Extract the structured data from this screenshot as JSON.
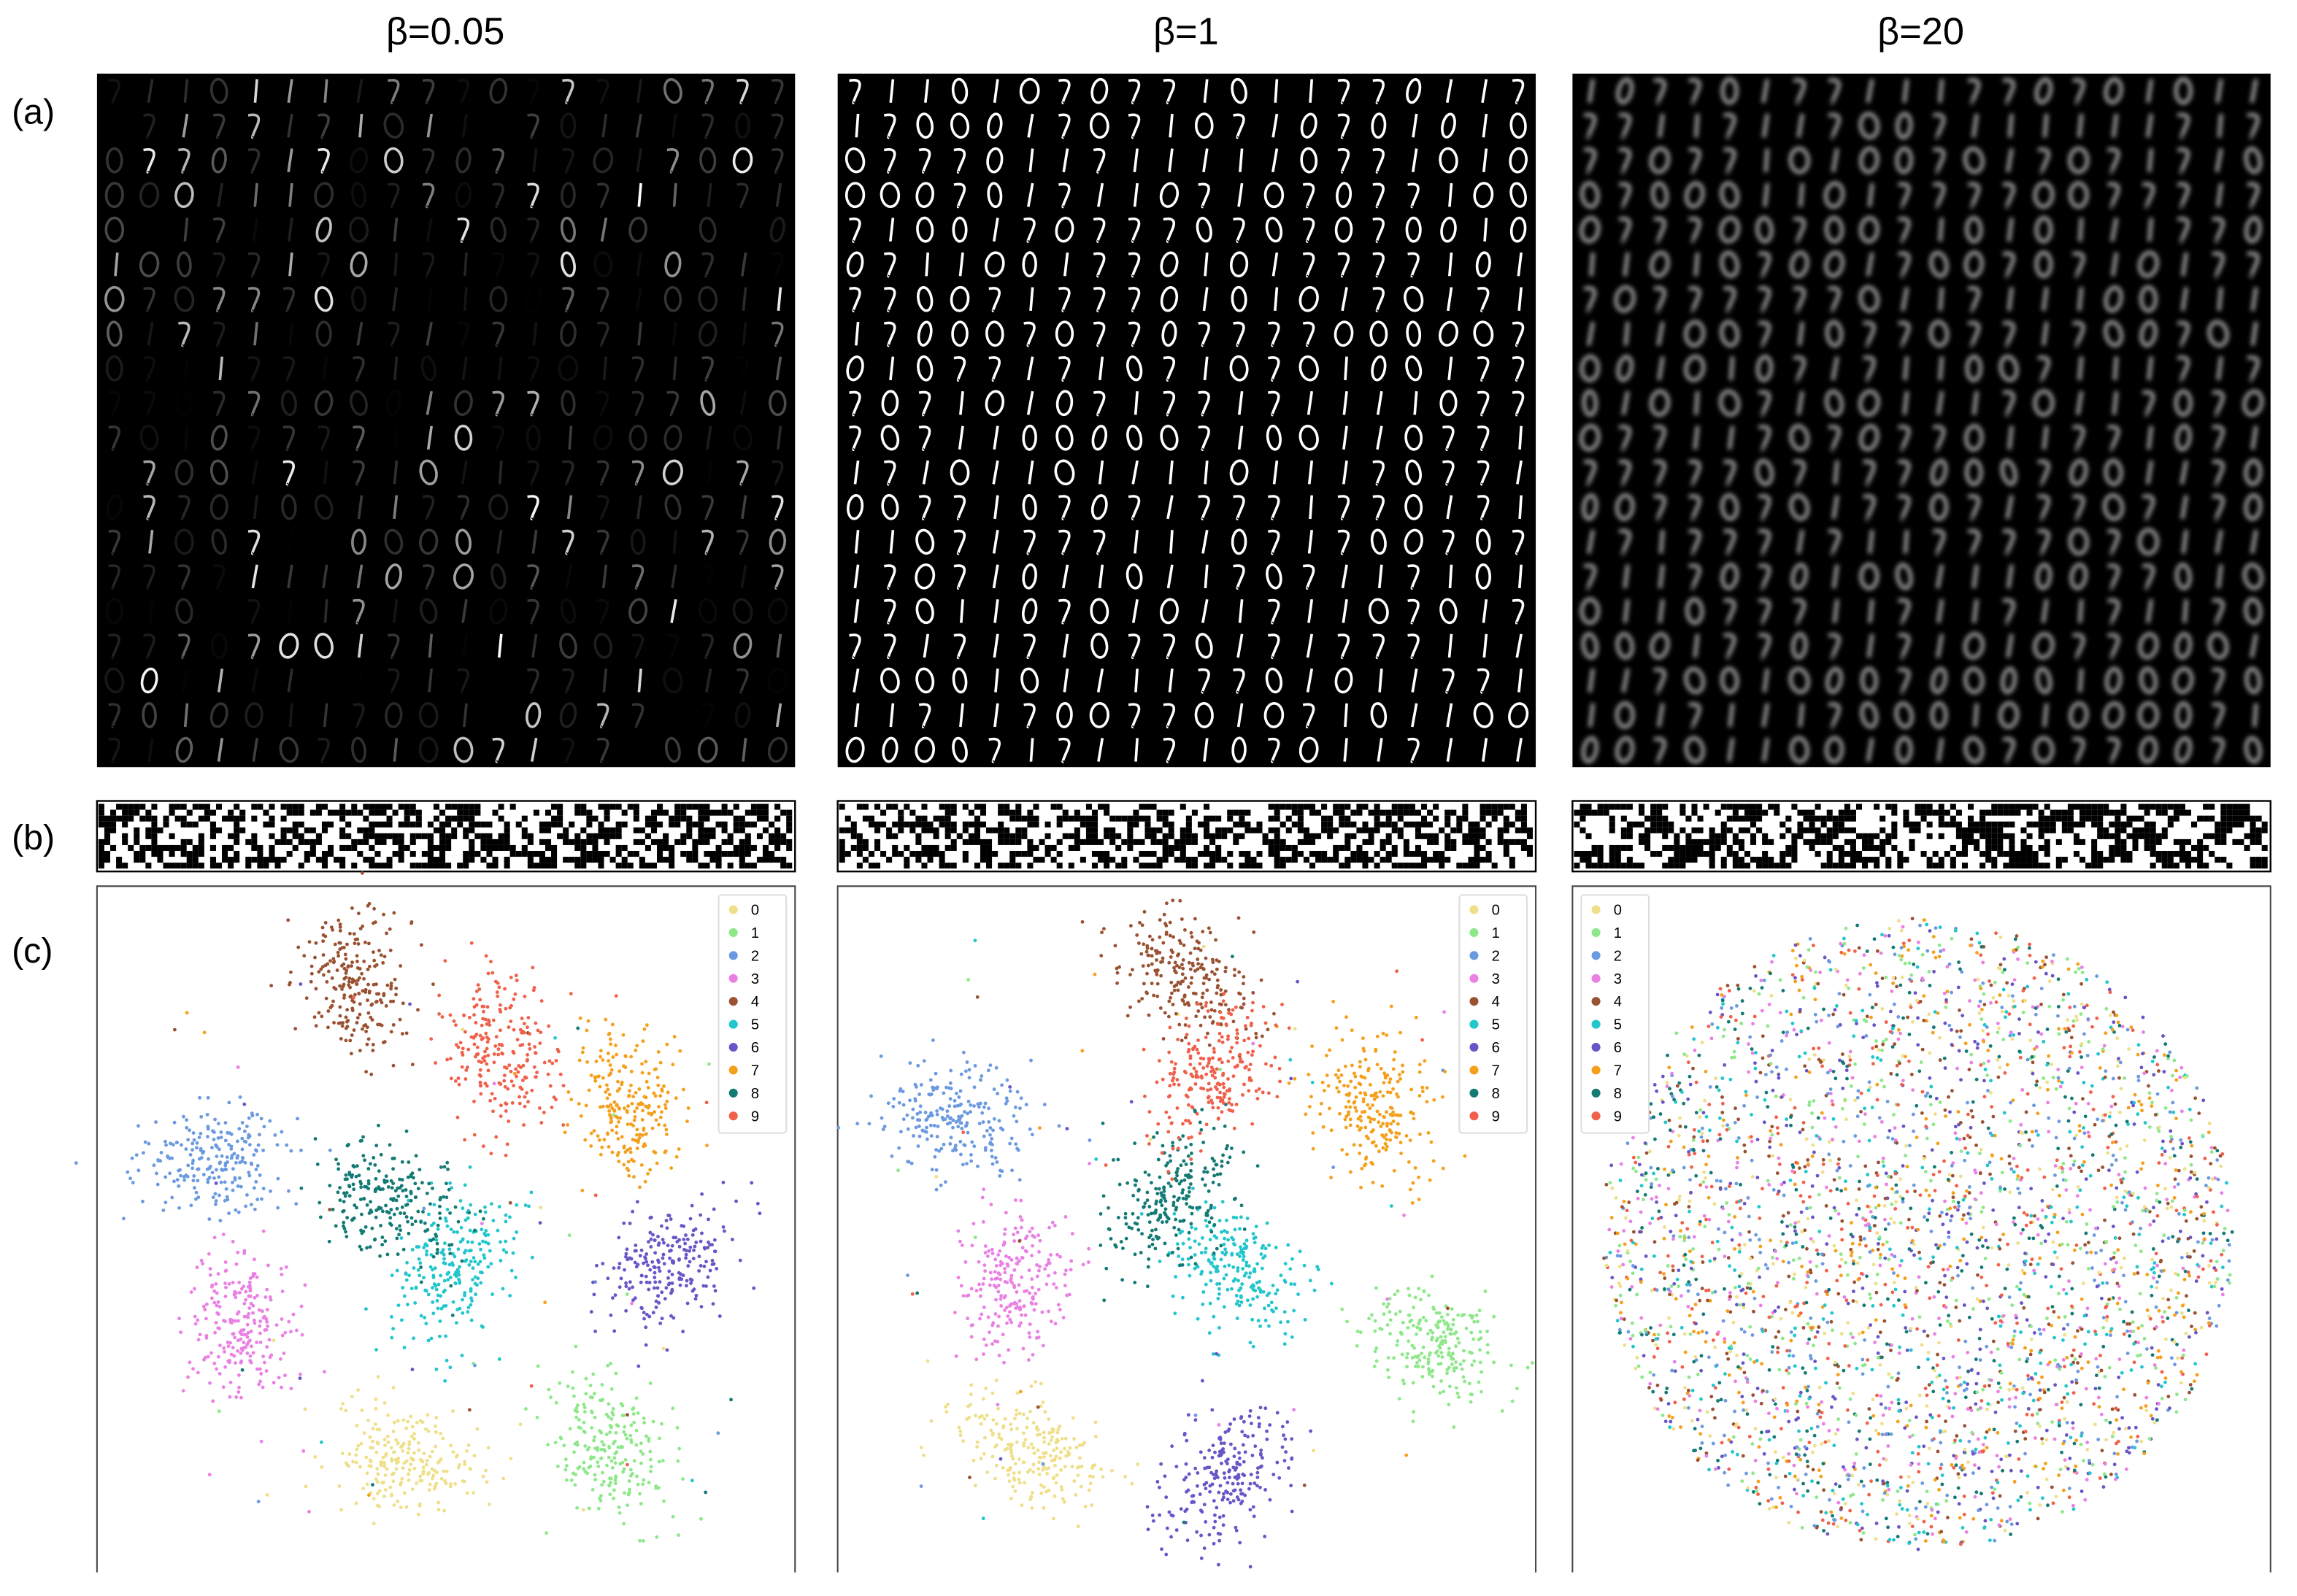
{
  "columns": [
    {
      "title": "β=0.05"
    },
    {
      "title": "β=1"
    },
    {
      "title": "β=20"
    }
  ],
  "rows": [
    {
      "label": "(a)"
    },
    {
      "label": "(b)"
    },
    {
      "label": "(c)"
    }
  ],
  "legend": {
    "labels": [
      "0",
      "1",
      "2",
      "3",
      "4",
      "5",
      "6",
      "7",
      "8",
      "9"
    ],
    "colors": [
      "#eedf88",
      "#8ee88a",
      "#6b9ae0",
      "#ea80e4",
      "#9a5232",
      "#22c6cc",
      "#6a54c8",
      "#f5a01c",
      "#137a74",
      "#f0604a"
    ]
  },
  "legend_corner": [
    "upper right",
    "upper right",
    "upper left"
  ]
}
